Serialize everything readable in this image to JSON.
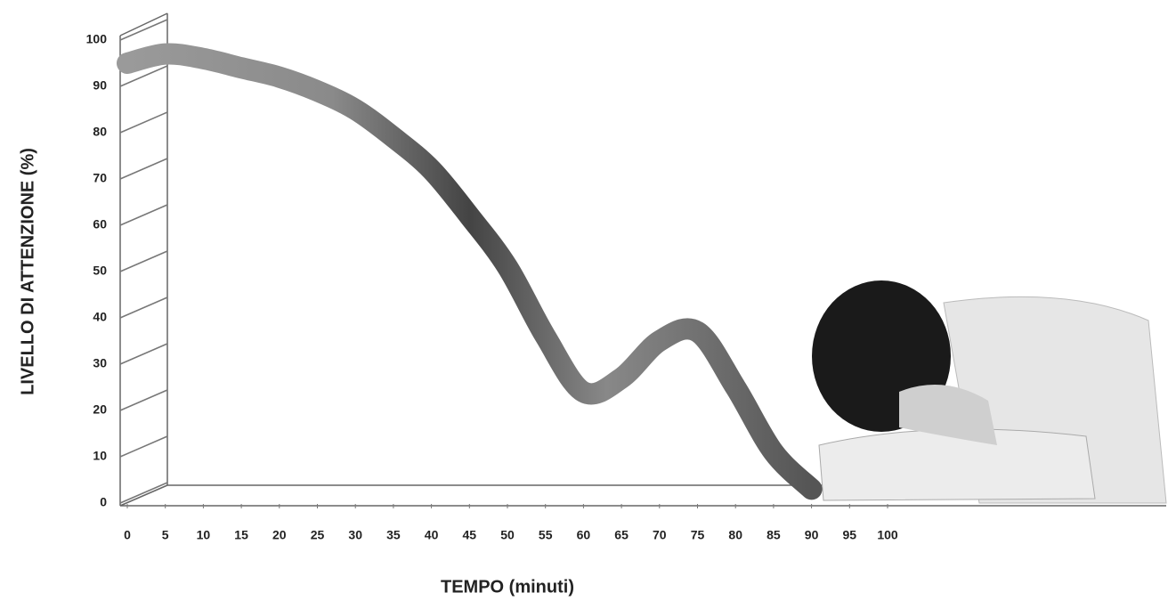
{
  "chart_data": {
    "type": "line",
    "xlabel": "TEMPO (minuti)",
    "ylabel": "LIVELLO DI ATTENZIONE (%)",
    "x": [
      0,
      5,
      10,
      15,
      20,
      25,
      30,
      35,
      40,
      45,
      50,
      55,
      60,
      65,
      70,
      75,
      80,
      85,
      90
    ],
    "series": [
      {
        "color": "#777777",
        "values": [
          95,
          97,
          96,
          94,
          92,
          89,
          85,
          79,
          72,
          62,
          51,
          36,
          24,
          27,
          35,
          37,
          25,
          11,
          3
        ]
      }
    ],
    "xlim": [
      0,
      100
    ],
    "xticks": [
      0,
      5,
      10,
      15,
      20,
      25,
      30,
      35,
      40,
      45,
      50,
      55,
      60,
      65,
      70,
      75,
      80,
      85,
      90,
      95,
      100
    ],
    "ylim": [
      0,
      100
    ],
    "yticks": [
      0,
      10,
      20,
      30,
      40,
      50,
      60,
      70,
      80,
      90,
      100
    ]
  }
}
